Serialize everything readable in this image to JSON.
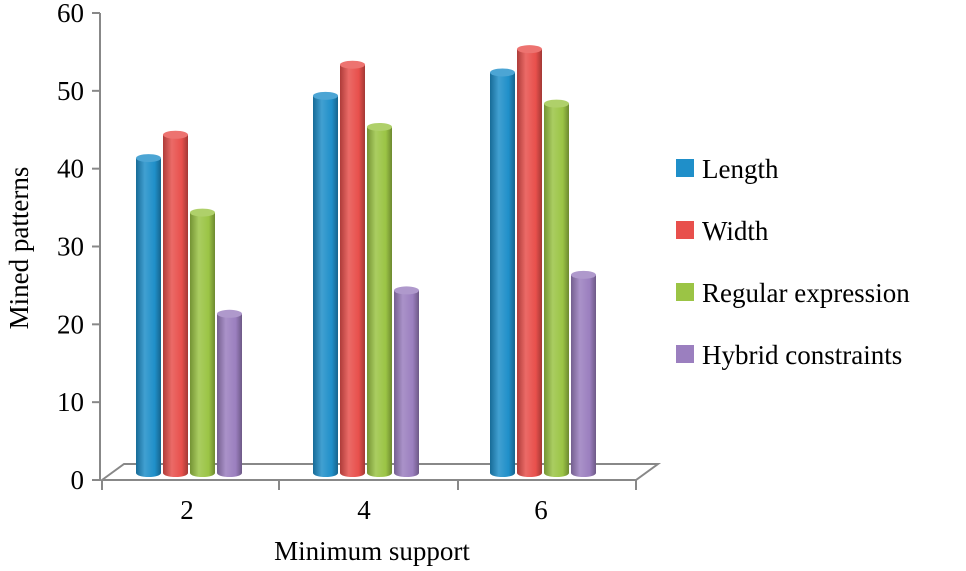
{
  "chart_data": {
    "type": "bar",
    "title": "",
    "xlabel": "Minimum support",
    "ylabel": "Mined patterns",
    "categories": [
      "2",
      "4",
      "6"
    ],
    "ylim": [
      0,
      60
    ],
    "yticks": [
      0,
      10,
      20,
      30,
      40,
      50,
      60
    ],
    "grid": false,
    "legend_position": "right",
    "series": [
      {
        "name": "Length",
        "values": [
          42,
          50,
          53
        ],
        "color": "#1f8fc9"
      },
      {
        "name": "Width",
        "values": [
          45,
          54,
          56
        ],
        "color": "#e8504c"
      },
      {
        "name": "Regular expression",
        "values": [
          35,
          46,
          49
        ],
        "color": "#9bc445"
      },
      {
        "name": "Hybrid constraints",
        "values": [
          22,
          25,
          27
        ],
        "color": "#9b7fbf"
      }
    ]
  }
}
